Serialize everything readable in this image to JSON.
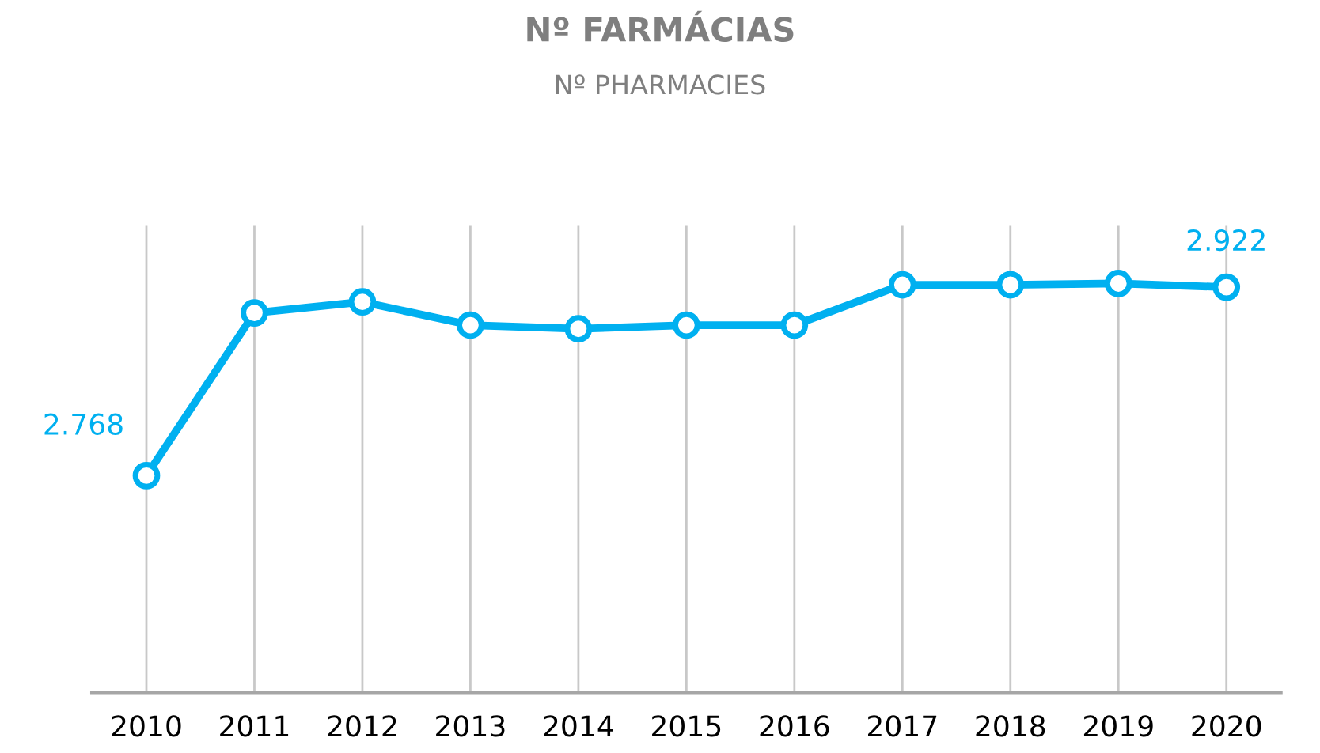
{
  "chart_data": {
    "type": "line",
    "title": "Nº FARMÁCIAS",
    "subtitle": "Nº PHARMACIES",
    "categories": [
      "2010",
      "2011",
      "2012",
      "2013",
      "2014",
      "2015",
      "2016",
      "2017",
      "2018",
      "2019",
      "2020"
    ],
    "marker": "circle",
    "grid": "x",
    "series": [
      {
        "color": "#00b0f0",
        "values": [
          2768,
          2901,
          2910,
          2891,
          2888,
          2891,
          2891,
          2924,
          2924,
          2925,
          2922
        ],
        "value_labels": [
          "2.768",
          null,
          null,
          null,
          null,
          null,
          null,
          null,
          null,
          null,
          "2.922"
        ]
      }
    ]
  }
}
